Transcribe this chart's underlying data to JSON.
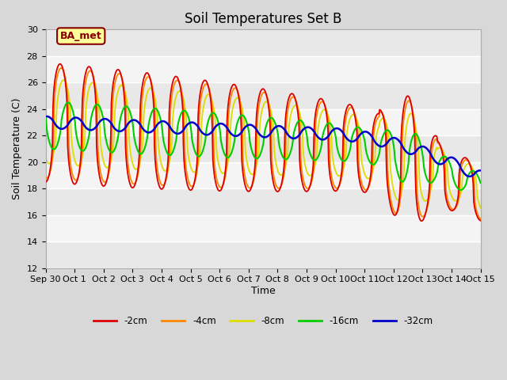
{
  "title": "Soil Temperatures Set B",
  "xlabel": "Time",
  "ylabel": "Soil Temperature (C)",
  "ylim": [
    12,
    30
  ],
  "yticks": [
    12,
    14,
    16,
    18,
    20,
    22,
    24,
    26,
    28,
    30
  ],
  "xtick_labels": [
    "Sep 30",
    "Oct 1",
    "Oct 2",
    "Oct 3",
    "Oct 4",
    "Oct 5",
    "Oct 6",
    "Oct 7",
    "Oct 8",
    "Oct 9",
    "Oct 10",
    "Oct 11",
    "Oct 12",
    "Oct 13",
    "Oct 14",
    "Oct 15"
  ],
  "series_colors": {
    "-2cm": "#dd0000",
    "-4cm": "#ff8800",
    "-8cm": "#dddd00",
    "-16cm": "#00cc00",
    "-32cm": "#0000cc"
  },
  "annotation_text": "BA_met",
  "annotation_color": "#880000",
  "annotation_bg": "#ffff99",
  "bg_light": "#f0f0f0",
  "bg_dark": "#e0e0e0",
  "title_fontsize": 12,
  "label_fontsize": 9,
  "tick_fontsize": 8
}
